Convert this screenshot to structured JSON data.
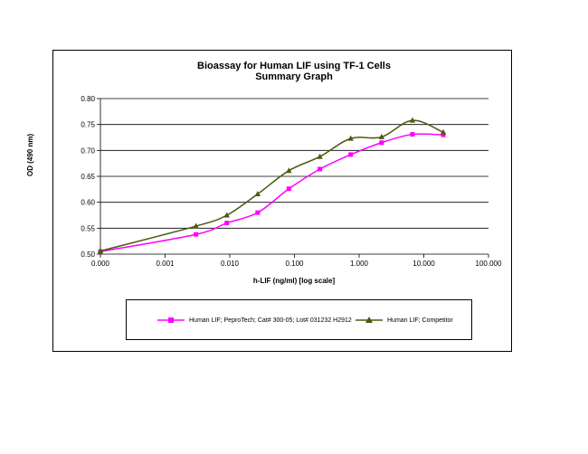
{
  "chart_data": {
    "type": "line",
    "title": "Bioassay for Human LIF using TF-1 Cells",
    "subtitle": "Summary Graph",
    "xlabel": "h-LIF (ng/ml) [log scale]",
    "ylabel": "OD (490 nm)",
    "x_scale": "log",
    "xlim": [
      0.0001,
      100
    ],
    "ylim": [
      0.5,
      0.8
    ],
    "x_tick_labels": [
      "0.000",
      "0.001",
      "0.010",
      "0.100",
      "1.000",
      "10.000",
      "100.000"
    ],
    "y_tick_labels": [
      "0.50",
      "0.55",
      "0.60",
      "0.65",
      "0.70",
      "0.75",
      "0.80"
    ],
    "grid": "horizontal",
    "legend_position": "bottom",
    "series": [
      {
        "name": "Human LIF; PeproTech; Cat# 300-05; Lot# 031232 H2912",
        "color": "#ff00ff",
        "marker": "square",
        "x": [
          0.0001,
          0.003,
          0.009,
          0.027,
          0.082,
          0.247,
          0.741,
          2.222,
          6.667,
          20
        ],
        "y": [
          0.505,
          0.538,
          0.56,
          0.58,
          0.626,
          0.664,
          0.692,
          0.715,
          0.731,
          0.73
        ]
      },
      {
        "name": "Human LIF; Competitor",
        "color": "#4a5a10",
        "marker": "triangle",
        "x": [
          0.0001,
          0.003,
          0.009,
          0.027,
          0.082,
          0.247,
          0.741,
          2.222,
          6.667,
          20
        ],
        "y": [
          0.506,
          0.554,
          0.575,
          0.616,
          0.661,
          0.688,
          0.723,
          0.726,
          0.758,
          0.735
        ]
      }
    ]
  }
}
